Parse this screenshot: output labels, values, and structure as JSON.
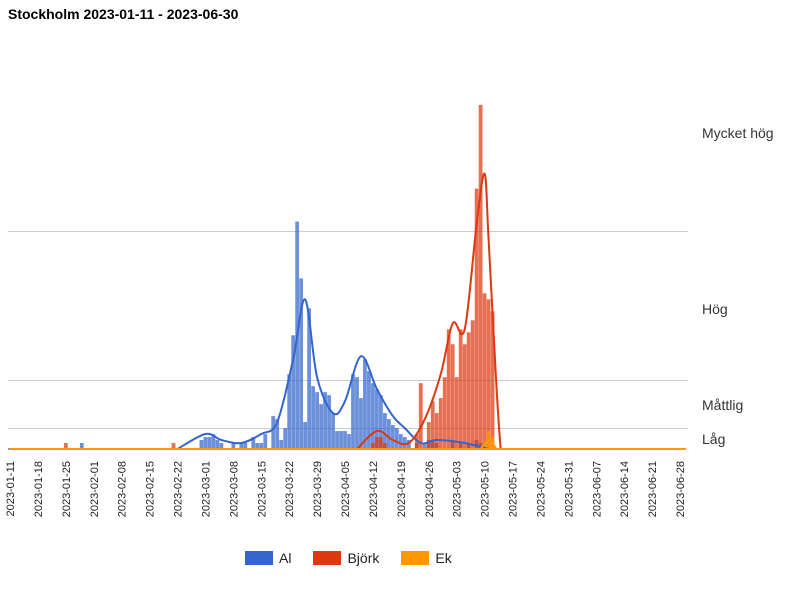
{
  "chart_data": {
    "type": "bar",
    "title": "Stockholm 2023-01-11 - 2023-06-30",
    "x_start": "2023-01-11",
    "x_end": "2023-06-30",
    "x_tick_labels": [
      "2023-01-11",
      "2023-01-18",
      "2023-01-25",
      "2023-02-01",
      "2023-02-08",
      "2023-02-15",
      "2023-02-22",
      "2023-03-01",
      "2023-03-08",
      "2023-03-15",
      "2023-03-22",
      "2023-03-29",
      "2023-04-05",
      "2023-04-12",
      "2023-04-19",
      "2023-04-26",
      "2023-05-03",
      "2023-05-10",
      "2023-05-17",
      "2023-05-24",
      "2023-05-31",
      "2023-06-07",
      "2023-06-14",
      "2023-06-21",
      "2023-06-28"
    ],
    "y_levels": [
      {
        "label": "Låg",
        "value": 1.5
      },
      {
        "label": "Måttlig",
        "value": 7
      },
      {
        "label": "Hög",
        "value": 43
      },
      {
        "label": "Mycket hög",
        "value": 110
      }
    ],
    "ylim": [
      0,
      140
    ],
    "series": [
      {
        "name": "Al",
        "color": "#3366cc",
        "points": [
          [
            "2023-01-29",
            2
          ],
          [
            "2023-02-28",
            3
          ],
          [
            "2023-03-01",
            4
          ],
          [
            "2023-03-02",
            4
          ],
          [
            "2023-03-03",
            5
          ],
          [
            "2023-03-04",
            3
          ],
          [
            "2023-03-05",
            2
          ],
          [
            "2023-03-08",
            2
          ],
          [
            "2023-03-10",
            2
          ],
          [
            "2023-03-11",
            2
          ],
          [
            "2023-03-13",
            4
          ],
          [
            "2023-03-14",
            2
          ],
          [
            "2023-03-15",
            2
          ],
          [
            "2023-03-16",
            5
          ],
          [
            "2023-03-18",
            11
          ],
          [
            "2023-03-19",
            10
          ],
          [
            "2023-03-20",
            3
          ],
          [
            "2023-03-21",
            7
          ],
          [
            "2023-03-22",
            25
          ],
          [
            "2023-03-23",
            38
          ],
          [
            "2023-03-24",
            76
          ],
          [
            "2023-03-25",
            57
          ],
          [
            "2023-03-26",
            9
          ],
          [
            "2023-03-27",
            47
          ],
          [
            "2023-03-28",
            21
          ],
          [
            "2023-03-29",
            19
          ],
          [
            "2023-03-30",
            15
          ],
          [
            "2023-03-31",
            19
          ],
          [
            "2023-04-01",
            18
          ],
          [
            "2023-04-02",
            12
          ],
          [
            "2023-04-03",
            6
          ],
          [
            "2023-04-04",
            6
          ],
          [
            "2023-04-05",
            6
          ],
          [
            "2023-04-06",
            5
          ],
          [
            "2023-04-07",
            25
          ],
          [
            "2023-04-08",
            24
          ],
          [
            "2023-04-09",
            17
          ],
          [
            "2023-04-10",
            30
          ],
          [
            "2023-04-11",
            26
          ],
          [
            "2023-04-12",
            22
          ],
          [
            "2023-04-13",
            20
          ],
          [
            "2023-04-14",
            18
          ],
          [
            "2023-04-15",
            12
          ],
          [
            "2023-04-16",
            10
          ],
          [
            "2023-04-17",
            8
          ],
          [
            "2023-04-18",
            7
          ],
          [
            "2023-04-19",
            5
          ],
          [
            "2023-04-20",
            4
          ],
          [
            "2023-04-21",
            3
          ],
          [
            "2023-04-23",
            2
          ],
          [
            "2023-04-25",
            2
          ],
          [
            "2023-04-26",
            3
          ],
          [
            "2023-04-27",
            3
          ],
          [
            "2023-04-28",
            2
          ],
          [
            "2023-05-02",
            3
          ],
          [
            "2023-05-04",
            2
          ],
          [
            "2023-05-06",
            2
          ],
          [
            "2023-05-08",
            3
          ],
          [
            "2023-05-09",
            2
          ]
        ],
        "smooth": [
          [
            "2023-02-22",
            0
          ],
          [
            "2023-03-01",
            5
          ],
          [
            "2023-03-05",
            3
          ],
          [
            "2023-03-10",
            2
          ],
          [
            "2023-03-15",
            5
          ],
          [
            "2023-03-19",
            9
          ],
          [
            "2023-03-23",
            30
          ],
          [
            "2023-03-26",
            50
          ],
          [
            "2023-03-29",
            24
          ],
          [
            "2023-04-02",
            12
          ],
          [
            "2023-04-05",
            16
          ],
          [
            "2023-04-09",
            31
          ],
          [
            "2023-04-13",
            20
          ],
          [
            "2023-04-17",
            11
          ],
          [
            "2023-04-20",
            7
          ],
          [
            "2023-04-24",
            2
          ],
          [
            "2023-04-28",
            3
          ],
          [
            "2023-05-05",
            2
          ],
          [
            "2023-05-11",
            0
          ]
        ]
      },
      {
        "name": "Björk",
        "color": "#dc3912",
        "points": [
          [
            "2023-01-25",
            2
          ],
          [
            "2023-02-21",
            2
          ],
          [
            "2023-04-12",
            2
          ],
          [
            "2023-04-13",
            4
          ],
          [
            "2023-04-14",
            4
          ],
          [
            "2023-04-15",
            2
          ],
          [
            "2023-04-23",
            5
          ],
          [
            "2023-04-24",
            22
          ],
          [
            "2023-04-26",
            9
          ],
          [
            "2023-04-27",
            16
          ],
          [
            "2023-04-28",
            12
          ],
          [
            "2023-04-29",
            17
          ],
          [
            "2023-04-30",
            24
          ],
          [
            "2023-05-01",
            40
          ],
          [
            "2023-05-02",
            35
          ],
          [
            "2023-05-03",
            24
          ],
          [
            "2023-05-04",
            40
          ],
          [
            "2023-05-05",
            35
          ],
          [
            "2023-05-06",
            39
          ],
          [
            "2023-05-07",
            43
          ],
          [
            "2023-05-08",
            87
          ],
          [
            "2023-05-09",
            115
          ],
          [
            "2023-05-10",
            52
          ],
          [
            "2023-05-11",
            50
          ],
          [
            "2023-05-12",
            46
          ]
        ],
        "smooth": [
          [
            "2023-04-08",
            0
          ],
          [
            "2023-04-13",
            6
          ],
          [
            "2023-04-17",
            3
          ],
          [
            "2023-04-21",
            2
          ],
          [
            "2023-04-25",
            10
          ],
          [
            "2023-04-29",
            25
          ],
          [
            "2023-05-02",
            42
          ],
          [
            "2023-05-05",
            40
          ],
          [
            "2023-05-08",
            75
          ],
          [
            "2023-05-10",
            92
          ],
          [
            "2023-05-11",
            70
          ],
          [
            "2023-05-13",
            20
          ],
          [
            "2023-05-14",
            0
          ]
        ]
      },
      {
        "name": "Ek",
        "color": "#ff9900",
        "points": [
          [
            "2023-05-10",
            2
          ],
          [
            "2023-05-11",
            6
          ],
          [
            "2023-05-12",
            4
          ]
        ],
        "smooth": [
          [
            "2023-05-09",
            0
          ],
          [
            "2023-05-11",
            3
          ],
          [
            "2023-05-13",
            0
          ]
        ]
      }
    ]
  }
}
